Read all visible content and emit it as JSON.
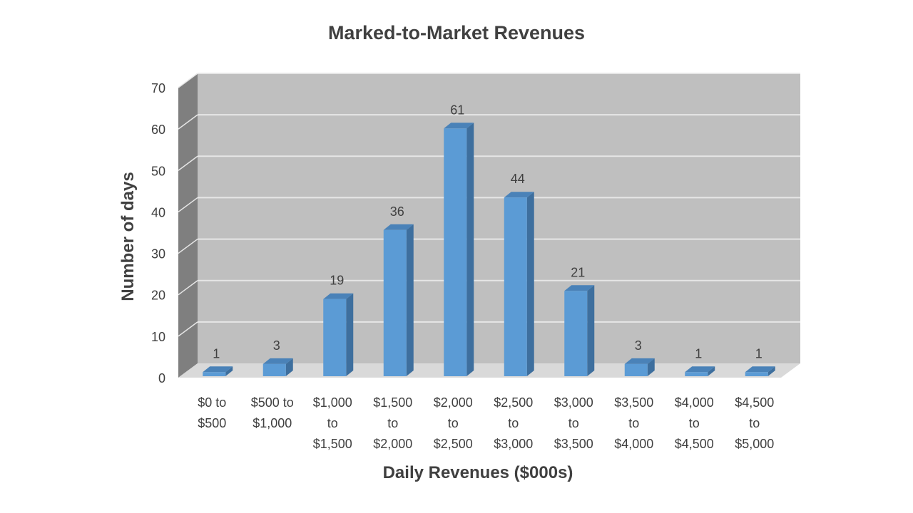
{
  "chart_data": {
    "type": "bar",
    "title": "Marked-to-Market Revenues",
    "xlabel": "Daily Revenues ($000s)",
    "ylabel": "Number of days",
    "ylim": [
      0,
      70
    ],
    "yticks": [
      0,
      10,
      20,
      30,
      40,
      50,
      60,
      70
    ],
    "grid": true,
    "legend": "none",
    "three_d": true,
    "categories": [
      [
        "$0 to",
        "$500"
      ],
      [
        "$500 to",
        "$1,000"
      ],
      [
        "$1,000",
        "to",
        "$1,500"
      ],
      [
        "$1,500",
        "to",
        "$2,000"
      ],
      [
        "$2,000",
        "to",
        "$2,500"
      ],
      [
        "$2,500",
        "to",
        "$3,000"
      ],
      [
        "$3,000",
        "to",
        "$3,500"
      ],
      [
        "$3,500",
        "to",
        "$4,000"
      ],
      [
        "$4,000",
        "to",
        "$4,500"
      ],
      [
        "$4,500",
        "to",
        "$5,000"
      ]
    ],
    "values": [
      1,
      3,
      19,
      36,
      61,
      44,
      21,
      3,
      1,
      1
    ],
    "colors": {
      "bar_front": "#5b9bd5",
      "bar_side": "#3e6f9e",
      "bar_top": "#4a82b8",
      "back_wall": "#bfbfbf",
      "side_wall": "#7f7f7f",
      "floor": "#d9d9d9",
      "gridline": "#e6e6e6"
    }
  }
}
